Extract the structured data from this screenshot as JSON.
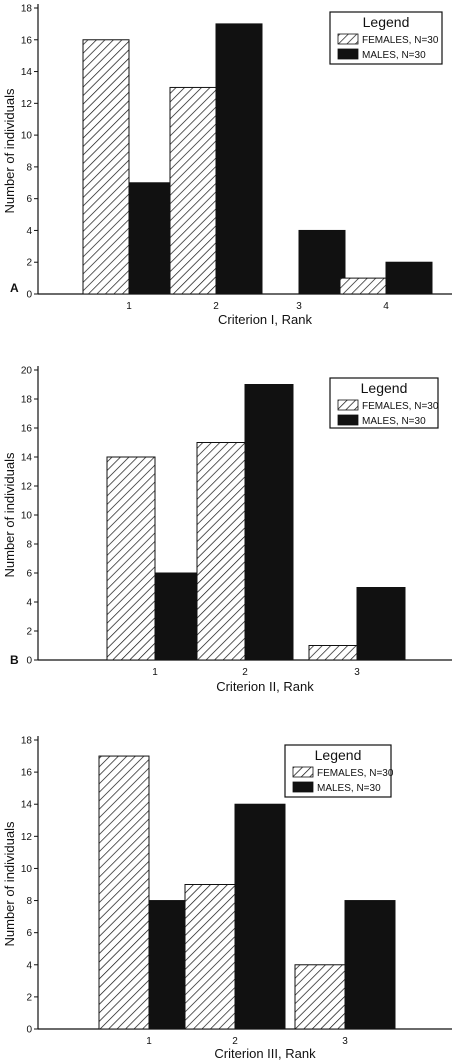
{
  "colors": {
    "ink": "#111111",
    "females_fill": "hatched",
    "males_fill": "#111111"
  },
  "chart_data": [
    {
      "type": "bar",
      "panel_label": "A",
      "categories": [
        "1",
        "2",
        "3",
        "4"
      ],
      "series": [
        {
          "name": "FEMALES, N=30",
          "values": [
            16,
            13,
            0,
            1
          ]
        },
        {
          "name": "MALES, N=30",
          "values": [
            7,
            17,
            4,
            2
          ]
        }
      ],
      "xlabel": "Criterion I, Rank",
      "ylabel": "Number of individuals",
      "ylim": [
        0,
        18
      ],
      "yticks": [
        "0",
        "2",
        "4",
        "6",
        "8",
        "10",
        "12",
        "14",
        "16",
        "18"
      ],
      "legend": {
        "title": "Legend",
        "position": "top-right"
      }
    },
    {
      "type": "bar",
      "panel_label": "B",
      "categories": [
        "1",
        "2",
        "3"
      ],
      "series": [
        {
          "name": "FEMALES, N=30",
          "values": [
            14,
            15,
            1
          ]
        },
        {
          "name": "MALES, N=30",
          "values": [
            6,
            19,
            5
          ]
        }
      ],
      "xlabel": "Criterion II, Rank",
      "ylabel": "Number of individuals",
      "ylim": [
        0,
        20
      ],
      "yticks": [
        "0",
        "2",
        "4",
        "6",
        "8",
        "10",
        "12",
        "14",
        "16",
        "18",
        "20"
      ],
      "legend": {
        "title": "Legend",
        "position": "top-right"
      }
    },
    {
      "type": "bar",
      "panel_label": "",
      "categories": [
        "1",
        "2",
        "3"
      ],
      "series": [
        {
          "name": "FEMALES, N=30",
          "values": [
            17,
            9,
            4
          ]
        },
        {
          "name": "MALES, N=30",
          "values": [
            8,
            14,
            8
          ]
        }
      ],
      "xlabel": "Criterion III, Rank",
      "ylabel": "Number of individuals",
      "ylim": [
        0,
        18
      ],
      "yticks": [
        "0",
        "2",
        "4",
        "6",
        "8",
        "10",
        "12",
        "14",
        "16",
        "18"
      ],
      "legend": {
        "title": "Legend",
        "position": "top-right"
      }
    }
  ]
}
